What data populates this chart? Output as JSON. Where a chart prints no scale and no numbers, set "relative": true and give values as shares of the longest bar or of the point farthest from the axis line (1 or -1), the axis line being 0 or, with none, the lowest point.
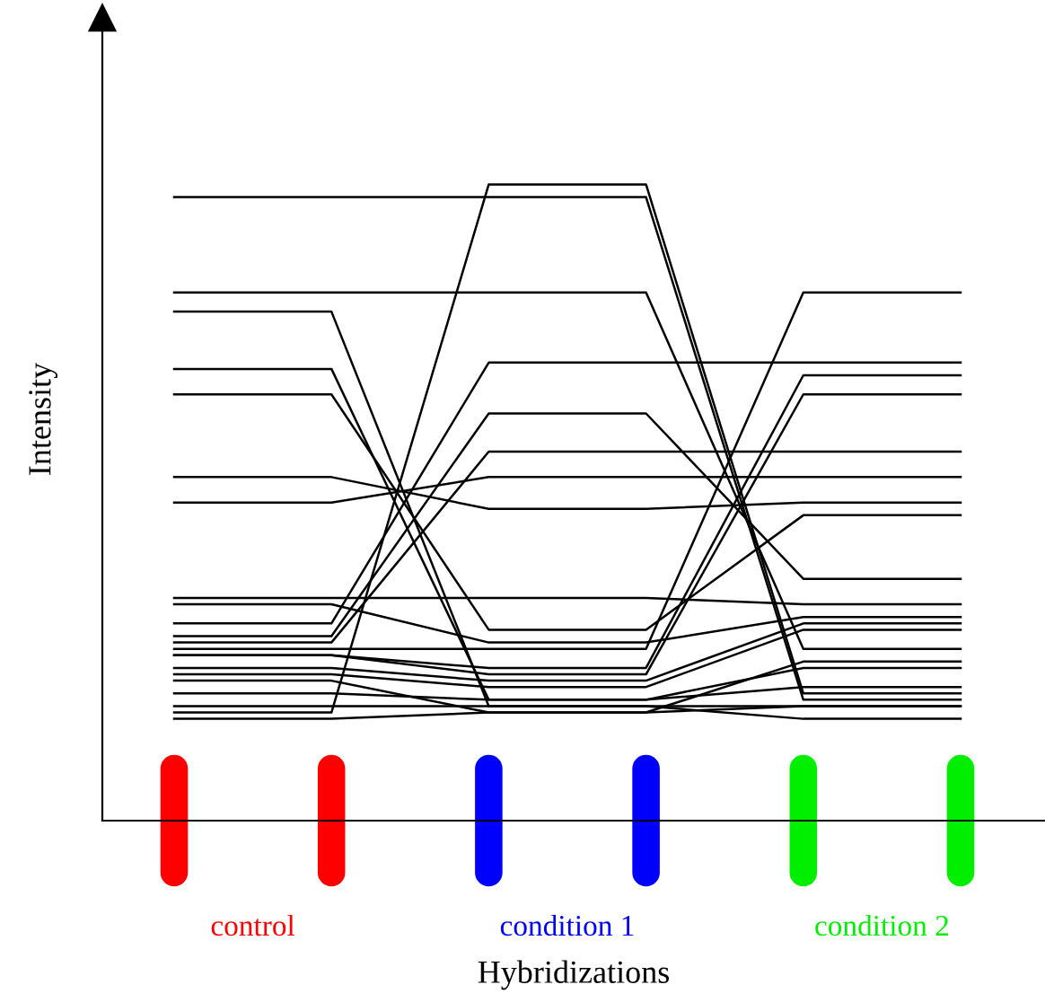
{
  "chart_data": {
    "type": "line",
    "relative": true,
    "xlabel": "Hybridizations",
    "ylabel": "Intensity",
    "categories": [
      null,
      null,
      null,
      null,
      null,
      null
    ],
    "annotations": [
      "control",
      "condition 1",
      "condition 2"
    ],
    "marker": "none",
    "line_style": "solid",
    "grid": false,
    "tick_labels": false,
    "series": [
      {
        "color": "#000000",
        "values": [
          0.98,
          0.98,
          0.98,
          0.98,
          0.19,
          0.19
        ]
      },
      {
        "color": "#000000",
        "values": [
          0.17,
          0.17,
          1.0,
          1.0,
          0.2,
          0.2
        ]
      },
      {
        "color": "#000000",
        "values": [
          0.83,
          0.83,
          0.83,
          0.83,
          0.27,
          0.27
        ]
      },
      {
        "color": "#000000",
        "values": [
          0.8,
          0.8,
          0.18,
          0.18,
          0.18,
          0.18
        ]
      },
      {
        "color": "#000000",
        "values": [
          0.71,
          0.71,
          0.19,
          0.19,
          0.21,
          0.21
        ]
      },
      {
        "color": "#000000",
        "values": [
          0.67,
          0.67,
          0.3,
          0.3,
          0.48,
          0.48
        ]
      },
      {
        "color": "#000000",
        "values": [
          0.54,
          0.54,
          0.49,
          0.49,
          0.5,
          0.5
        ]
      },
      {
        "color": "#000000",
        "values": [
          0.5,
          0.5,
          0.54,
          0.54,
          0.54,
          0.54
        ]
      },
      {
        "color": "#000000",
        "values": [
          0.35,
          0.35,
          0.35,
          0.35,
          0.34,
          0.34
        ]
      },
      {
        "color": "#000000",
        "values": [
          0.34,
          0.34,
          0.28,
          0.28,
          0.32,
          0.32
        ]
      },
      {
        "color": "#000000",
        "values": [
          0.31,
          0.31,
          0.72,
          0.72,
          0.72,
          0.72
        ]
      },
      {
        "color": "#000000",
        "values": [
          0.29,
          0.29,
          0.64,
          0.64,
          0.38,
          0.38
        ]
      },
      {
        "color": "#000000",
        "values": [
          0.28,
          0.28,
          0.58,
          0.58,
          0.58,
          0.58
        ]
      },
      {
        "color": "#000000",
        "values": [
          0.27,
          0.27,
          0.27,
          0.27,
          0.83,
          0.83
        ]
      },
      {
        "color": "#000000",
        "values": [
          0.26,
          0.26,
          0.24,
          0.24,
          0.7,
          0.7
        ]
      },
      {
        "color": "#000000",
        "values": [
          0.26,
          0.26,
          0.23,
          0.23,
          0.67,
          0.67
        ]
      },
      {
        "color": "#000000",
        "values": [
          0.24,
          0.24,
          0.22,
          0.22,
          0.31,
          0.31
        ]
      },
      {
        "color": "#000000",
        "values": [
          0.23,
          0.23,
          0.21,
          0.21,
          0.3,
          0.3
        ]
      },
      {
        "color": "#000000",
        "values": [
          0.22,
          0.22,
          0.17,
          0.17,
          0.25,
          0.25
        ]
      },
      {
        "color": "#000000",
        "values": [
          0.2,
          0.2,
          0.19,
          0.19,
          0.24,
          0.24
        ]
      },
      {
        "color": "#000000",
        "values": [
          0.18,
          0.18,
          0.18,
          0.18,
          0.16,
          0.16
        ]
      },
      {
        "color": "#000000",
        "values": [
          0.16,
          0.16,
          0.17,
          0.17,
          0.18,
          0.18
        ]
      }
    ]
  }
}
